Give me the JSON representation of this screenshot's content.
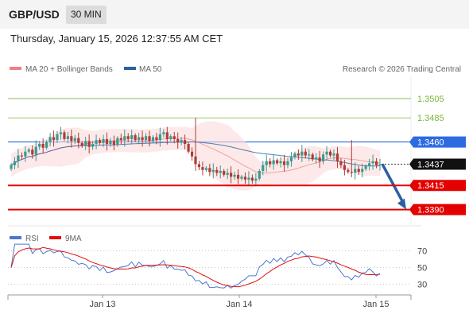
{
  "header": {
    "pair": "GBP/USD",
    "timeframe": "30 MIN"
  },
  "datetime": "Thursday, January 15, 2026 12:37:55 AM CET",
  "legend": {
    "bollinger": {
      "label": "MA 20 + Bollinger Bands",
      "color": "#f08080"
    },
    "ma50": {
      "label": "MA 50",
      "color": "#2d5fa3"
    },
    "credit": "Research © 2026 Trading Central"
  },
  "rsi_legend": {
    "rsi": {
      "label": "RSI",
      "color": "#4a78d0"
    },
    "ma9": {
      "label": "9MA",
      "color": "#e01010"
    }
  },
  "colors": {
    "bull": "#3a9a8e",
    "bear": "#b23a34",
    "resistance": "#7ab53c",
    "support": "#e30000",
    "current": "#111111",
    "pivot": "#2d6be0",
    "arrow": "#2d5fa3"
  },
  "chart_data": [
    {
      "type": "candlestick",
      "ylim": [
        1.3374,
        1.3528
      ],
      "x_ticks": [
        "Jan 13",
        "Jan 14",
        "Jan 15"
      ],
      "levels": [
        {
          "label": "1.3505",
          "value": 1.3505,
          "kind": "resistance"
        },
        {
          "label": "1.3485",
          "value": 1.3485,
          "kind": "resistance"
        },
        {
          "label": "1.3460",
          "value": 1.346,
          "kind": "pivot"
        },
        {
          "label": "1.3437",
          "value": 1.3437,
          "kind": "current"
        },
        {
          "label": "1.3415",
          "value": 1.3415,
          "kind": "support"
        },
        {
          "label": "1.3390",
          "value": 1.339,
          "kind": "support"
        }
      ],
      "arrow": {
        "from": 1.3437,
        "to": 1.339
      },
      "closes": [
        1.3436,
        1.344,
        1.3446,
        1.3445,
        1.345,
        1.3452,
        1.3447,
        1.3455,
        1.3458,
        1.3454,
        1.346,
        1.3465,
        1.3462,
        1.3468,
        1.347,
        1.3463,
        1.3466,
        1.3461,
        1.3464,
        1.3459,
        1.3456,
        1.3461,
        1.3455,
        1.3458,
        1.3462,
        1.3459,
        1.3463,
        1.3458,
        1.3461,
        1.3457,
        1.3464,
        1.3462,
        1.3466,
        1.3463,
        1.3467,
        1.3462,
        1.3465,
        1.3462,
        1.3466,
        1.3461,
        1.3465,
        1.3462,
        1.3468,
        1.347,
        1.3463,
        1.3466,
        1.3463,
        1.346,
        1.3462,
        1.3458,
        1.345,
        1.3445,
        1.3437,
        1.3434,
        1.3431,
        1.3433,
        1.3429,
        1.3431,
        1.3428,
        1.343,
        1.3426,
        1.3428,
        1.3424,
        1.3426,
        1.3422,
        1.3424,
        1.3421,
        1.3423,
        1.342,
        1.3422,
        1.343,
        1.3436,
        1.344,
        1.3437,
        1.3441,
        1.3438,
        1.344,
        1.3436,
        1.344,
        1.3444,
        1.3448,
        1.3446,
        1.345,
        1.3446,
        1.3447,
        1.3442,
        1.3444,
        1.344,
        1.3447,
        1.345,
        1.3446,
        1.3448,
        1.344,
        1.3436,
        1.3431,
        1.3429,
        1.3428,
        1.3432,
        1.3429,
        1.3432,
        1.3435,
        1.3438,
        1.344,
        1.3436,
        1.3437
      ]
    },
    {
      "type": "line",
      "ylim": [
        20,
        80
      ],
      "y_ticks": [
        "70",
        "50",
        "30"
      ],
      "series": [
        {
          "name": "RSI"
        },
        {
          "name": "9MA"
        }
      ]
    }
  ]
}
